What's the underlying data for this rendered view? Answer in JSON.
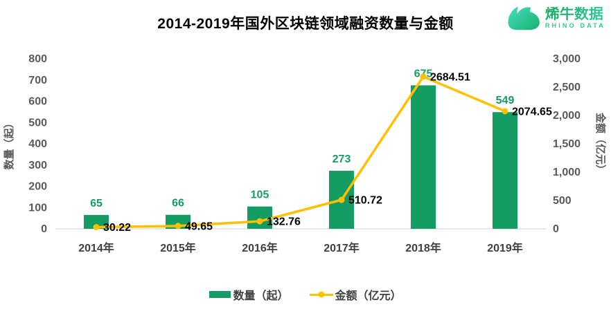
{
  "header": {
    "title": "2014-2019年国外区块链领域融资数量与金额",
    "logo": {
      "name": "烯牛数据",
      "subname": "RHINO DATA"
    }
  },
  "chart_data": {
    "type": "bar+line combo",
    "title": "2014-2019年国外区块链领域融资数量与金额",
    "categories": [
      "2014年",
      "2015年",
      "2016年",
      "2017年",
      "2018年",
      "2019年"
    ],
    "series": [
      {
        "name": "数量（起）",
        "type": "bar",
        "axis": "left",
        "color": "#149c63",
        "values": [
          65,
          66,
          105,
          273,
          675,
          549
        ],
        "labels": [
          "65",
          "66",
          "105",
          "273",
          "675",
          "549"
        ]
      },
      {
        "name": "金额（亿元）",
        "type": "line",
        "axis": "right",
        "color": "#ffc000",
        "values": [
          30.22,
          49.65,
          132.76,
          510.72,
          2684.51,
          2074.65
        ],
        "labels": [
          "30.22",
          "49.65",
          "132.76",
          "510.72",
          "2684.51",
          "2074.65"
        ]
      }
    ],
    "left_axis": {
      "title": "数量（起）",
      "min": 0,
      "max": 800,
      "step": 100,
      "ticks": [
        "0",
        "100",
        "200",
        "300",
        "400",
        "500",
        "600",
        "700",
        "800"
      ]
    },
    "right_axis": {
      "title": "金额（亿元）",
      "min": 0,
      "max": 3000,
      "step": 500,
      "ticks": [
        "0",
        "500",
        "1,000",
        "1,500",
        "2,000",
        "2,500",
        "3,000"
      ]
    },
    "grid": false,
    "legend_position": "bottom"
  },
  "legend": {
    "items": [
      {
        "label": "数量（起）",
        "swatch": "bar"
      },
      {
        "label": "金额（亿元）",
        "swatch": "line"
      }
    ]
  },
  "colors": {
    "bar_green": "#149c63",
    "line_gold": "#ffc000",
    "axis_text": "#595959",
    "category_text": "#3f3f3f",
    "baseline": "#d9d9d9",
    "data_label": "#000000",
    "brand_green": "#1db273",
    "brand_teal": "#2ec79a"
  }
}
